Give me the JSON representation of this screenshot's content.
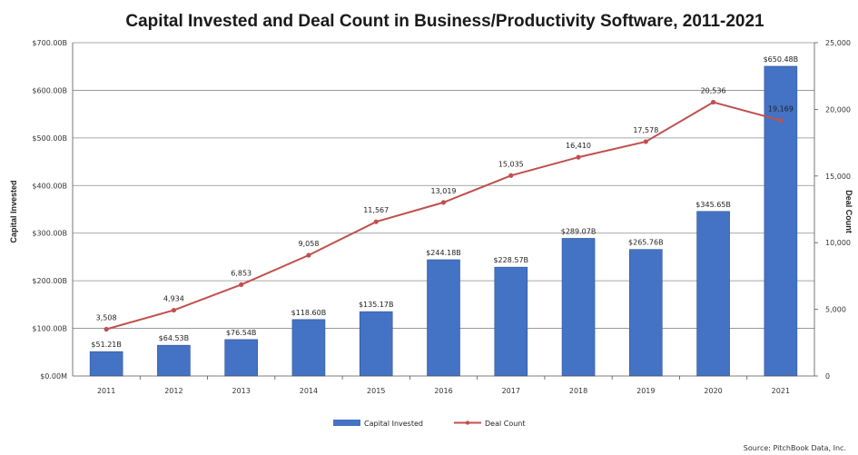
{
  "chart_data": {
    "type": "bar",
    "title": "Capital Invested and Deal Count in Business/Productivity Software, 2011-2021",
    "categories": [
      "2011",
      "2012",
      "2013",
      "2014",
      "2015",
      "2016",
      "2017",
      "2018",
      "2019",
      "2020",
      "2021"
    ],
    "series": [
      {
        "name": "Capital Invested",
        "type": "bar",
        "axis": "left",
        "color": "#4472c4",
        "values": [
          51.21,
          64.53,
          76.54,
          118.6,
          135.17,
          244.18,
          228.57,
          289.07,
          265.76,
          345.65,
          650.48
        ],
        "labels": [
          "$51.21B",
          "$64.53B",
          "$76.54B",
          "$118.60B",
          "$135.17B",
          "$244.18B",
          "$228.57B",
          "$289.07B",
          "$265.76B",
          "$345.65B",
          "$650.48B"
        ]
      },
      {
        "name": "Deal Count",
        "type": "line",
        "axis": "right",
        "color": "#c0504d",
        "values": [
          3508,
          4934,
          6853,
          9058,
          11567,
          13019,
          15035,
          16410,
          17578,
          20536,
          19169
        ],
        "labels": [
          "3,508",
          "4,934",
          "6,853",
          "9,058",
          "11,567",
          "13,019",
          "15,035",
          "16,410",
          "17,578",
          "20,536",
          "19,169"
        ]
      }
    ],
    "ylabel": "Capital Invested",
    "ylabel_right": "Deal Count",
    "ylim": [
      0,
      700
    ],
    "ylim_right": [
      0,
      25000
    ],
    "y_ticks": [
      0,
      100,
      200,
      300,
      400,
      500,
      600,
      700
    ],
    "y_tick_labels": [
      "$0.00M",
      "$100.00B",
      "$200.00B",
      "$300.00B",
      "$400.00B",
      "$500.00B",
      "$600.00B",
      "$700.00B"
    ],
    "y_right_ticks": [
      0,
      5000,
      10000,
      15000,
      20000,
      25000
    ],
    "y_right_tick_labels": [
      "0",
      "5,000",
      "10,000",
      "15,000",
      "20,000",
      "25,000"
    ],
    "grid": true,
    "legend_position": "bottom-center",
    "source": "Source: PitchBook Data, Inc."
  }
}
